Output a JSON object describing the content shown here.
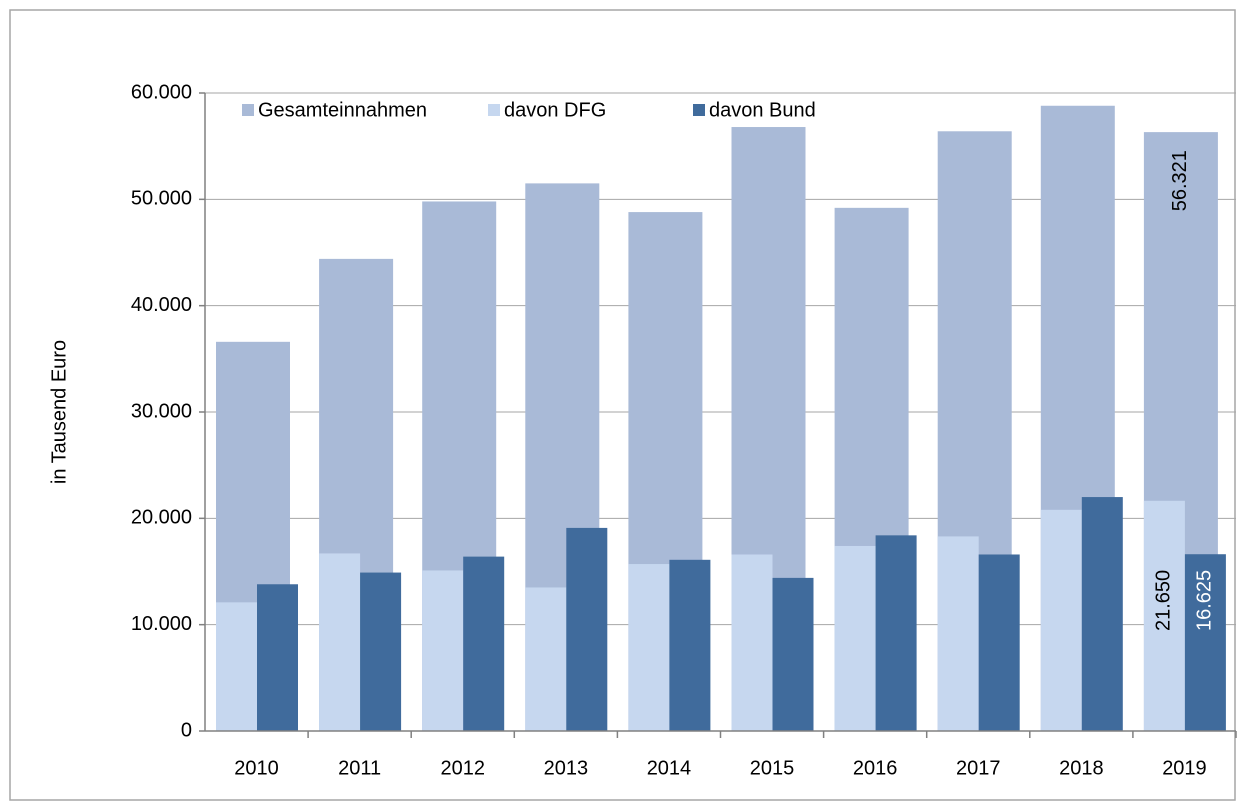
{
  "chart_data": {
    "type": "bar",
    "y_label": "in Tausend Euro",
    "categories": [
      "2010",
      "2011",
      "2012",
      "2013",
      "2014",
      "2015",
      "2016",
      "2017",
      "2018",
      "2019"
    ],
    "series": [
      {
        "name": "Gesamteinnahmen",
        "color": "#a9bad7",
        "values": [
          36600,
          44400,
          49800,
          51500,
          48800,
          56800,
          49200,
          56400,
          58800,
          56321
        ],
        "value_labels": [
          null,
          null,
          null,
          null,
          null,
          null,
          null,
          null,
          null,
          "56.321"
        ]
      },
      {
        "name": "davon DFG",
        "color": "#c6d7ef",
        "values": [
          12100,
          16700,
          15100,
          13500,
          15700,
          16600,
          17400,
          18300,
          20800,
          21650
        ],
        "value_labels": [
          null,
          null,
          null,
          null,
          null,
          null,
          null,
          null,
          null,
          "21.650"
        ]
      },
      {
        "name": "davon Bund",
        "color": "#406b9c",
        "values": [
          13800,
          14900,
          16400,
          19100,
          16100,
          14400,
          18400,
          16600,
          22000,
          16625
        ],
        "value_labels": [
          null,
          null,
          null,
          null,
          null,
          null,
          null,
          null,
          null,
          "16.625"
        ]
      }
    ],
    "ylim": [
      0,
      60000
    ],
    "yticks": [
      0,
      {
        "value": 10000,
        "label": "10.000"
      },
      {
        "value": 20000,
        "label": "20.000"
      },
      {
        "value": 30000,
        "label": "30.000"
      },
      {
        "value": 40000,
        "label": "40.000"
      },
      {
        "value": 50000,
        "label": "50.000"
      },
      {
        "value": 60000,
        "label": "60.000"
      }
    ],
    "grid": true,
    "legend": "top-left"
  }
}
